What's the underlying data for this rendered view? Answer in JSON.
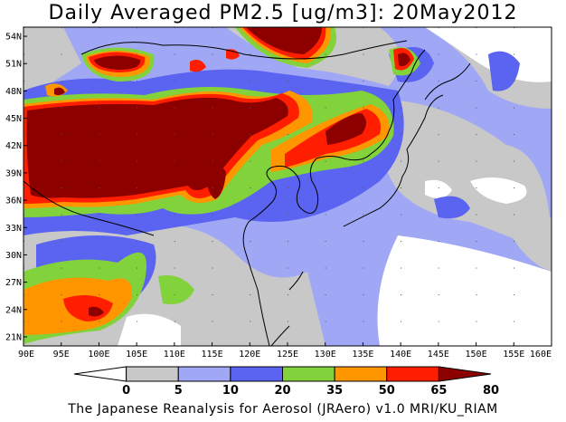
{
  "title": "Daily Averaged PM2.5 [ug/m3]: 20May2012",
  "footer": "The Japanese Reanalysis for Aerosol (JRAero) v1.0 MRI/KU_RIAM",
  "map": {
    "lon_range": [
      90,
      160
    ],
    "lat_range": [
      20,
      55
    ],
    "lat_ticks": [
      "54N",
      "51N",
      "48N",
      "45N",
      "42N",
      "39N",
      "36N",
      "33N",
      "30N",
      "27N",
      "24N",
      "21N"
    ],
    "lon_ticks": [
      "90E",
      "95E",
      "100E",
      "105E",
      "110E",
      "115E",
      "120E",
      "125E",
      "130E",
      "135E",
      "140E",
      "145E",
      "150E",
      "155E",
      "160E"
    ]
  },
  "colorbar": {
    "labels": [
      "0",
      "5",
      "10",
      "20",
      "35",
      "50",
      "65",
      "80"
    ],
    "colors": [
      "#ffffff",
      "#c8c8c8",
      "#a0a8f5",
      "#5a64f0",
      "#82d23c",
      "#ff9600",
      "#ff1e00",
      "#8c0000"
    ]
  },
  "palette": {
    "c0": "#ffffff",
    "c5": "#c8c8c8",
    "c10": "#a0a8f5",
    "c20": "#5a64f0",
    "c35": "#82d23c",
    "c50": "#ff9600",
    "c65": "#ff1e00",
    "c80": "#8c0000"
  }
}
